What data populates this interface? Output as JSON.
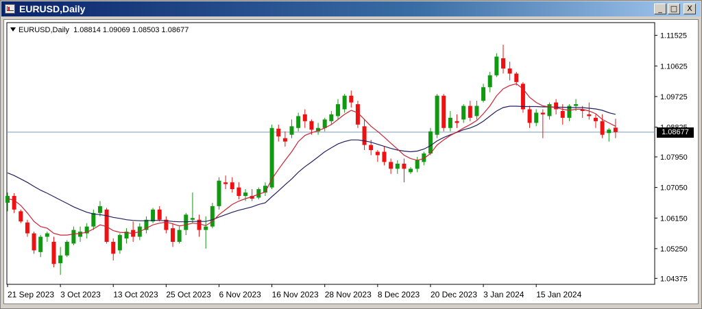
{
  "window": {
    "title": "EURUSD,Daily",
    "minimize_label": "_",
    "maximize_label": "□",
    "close_label": "X"
  },
  "chart_info": {
    "symbol_timeframe": "EURUSD,Daily",
    "ohlc": "1.08814 1.09069 1.08503 1.08677"
  },
  "current_price_label": "1.08677",
  "colors": {
    "bull": "#119911",
    "bear": "#ee1111",
    "ma_fast": "#cc2233",
    "ma_slow": "#202060",
    "price_line": "#7a9ab0"
  },
  "chart_data": {
    "type": "candlestick",
    "ylim": [
      1.042,
      1.119
    ],
    "y_ticks": [
      "1.11525",
      "1.10625",
      "1.09725",
      "1.08825",
      "1.07950",
      "1.07050",
      "1.06150",
      "1.05250",
      "1.04375"
    ],
    "x_ticks": [
      "21 Sep 2023",
      "3 Oct 2023",
      "13 Oct 2023",
      "25 Oct 2023",
      "6 Nov 2023",
      "16 Nov 2023",
      "28 Nov 2023",
      "8 Dec 2023",
      "20 Dec 2023",
      "3 Jan 2024",
      "15 Jan 2024"
    ],
    "x_tick_index": [
      0,
      8,
      16,
      24,
      32,
      40,
      48,
      56,
      64,
      72,
      80
    ],
    "current_price": 1.08677,
    "candles": [
      [
        1.066,
        1.069,
        1.0635,
        1.068
      ],
      [
        1.068,
        1.0688,
        1.063,
        1.064
      ],
      [
        1.0635,
        1.064,
        1.06,
        1.0605
      ],
      [
        1.0602,
        1.061,
        1.056,
        1.057
      ],
      [
        1.057,
        1.0575,
        1.051,
        1.052
      ],
      [
        1.0515,
        1.0565,
        1.05,
        1.056
      ],
      [
        1.056,
        1.0575,
        1.0545,
        1.057
      ],
      [
        1.0545,
        1.056,
        1.047,
        1.048
      ],
      [
        1.0482,
        1.053,
        1.0448,
        1.0505
      ],
      [
        1.0505,
        1.055,
        1.05,
        1.0545
      ],
      [
        1.054,
        1.059,
        1.0535,
        1.058
      ],
      [
        1.056,
        1.059,
        1.0545,
        1.0575
      ],
      [
        1.057,
        1.06,
        1.0555,
        1.059
      ],
      [
        1.059,
        1.064,
        1.058,
        1.063
      ],
      [
        1.063,
        1.0665,
        1.062,
        1.065
      ],
      [
        1.064,
        1.0645,
        1.054,
        1.0545
      ],
      [
        1.0545,
        1.0555,
        1.049,
        1.051
      ],
      [
        1.052,
        1.057,
        1.051,
        1.0565
      ],
      [
        1.0555,
        1.0585,
        1.054,
        1.0575
      ],
      [
        1.058,
        1.0605,
        1.0545,
        1.056
      ],
      [
        1.056,
        1.06,
        1.055,
        1.059
      ],
      [
        1.058,
        1.062,
        1.057,
        1.061
      ],
      [
        1.0605,
        1.0645,
        1.06,
        1.064
      ],
      [
        1.064,
        1.065,
        1.0605,
        1.061
      ],
      [
        1.061,
        1.062,
        1.057,
        1.058
      ],
      [
        1.0585,
        1.06,
        1.053,
        1.0545
      ],
      [
        1.0545,
        1.059,
        1.054,
        1.058
      ],
      [
        1.058,
        1.063,
        1.0565,
        1.0625
      ],
      [
        1.061,
        1.069,
        1.06,
        1.0615
      ],
      [
        1.061,
        1.0625,
        1.056,
        1.058
      ],
      [
        1.058,
        1.062,
        1.0525,
        1.059
      ],
      [
        1.059,
        1.066,
        1.0585,
        1.065
      ],
      [
        1.065,
        1.0735,
        1.064,
        1.0725
      ],
      [
        1.072,
        1.074,
        1.07,
        1.0715
      ],
      [
        1.072,
        1.0735,
        1.069,
        1.07
      ],
      [
        1.0705,
        1.072,
        1.067,
        1.068
      ],
      [
        1.068,
        1.07,
        1.0665,
        1.069
      ],
      [
        1.068,
        1.07,
        1.0665,
        1.0672
      ],
      [
        1.0675,
        1.0705,
        1.067,
        1.07
      ],
      [
        1.069,
        1.072,
        1.068,
        1.071
      ],
      [
        1.0705,
        1.089,
        1.07,
        1.088
      ],
      [
        1.0878,
        1.089,
        1.084,
        1.0855
      ],
      [
        1.085,
        1.087,
        1.0825,
        1.084
      ],
      [
        1.086,
        1.0905,
        1.085,
        1.0885
      ],
      [
        1.088,
        1.0925,
        1.087,
        1.0915
      ],
      [
        1.092,
        1.0935,
        1.088,
        1.09
      ],
      [
        1.09,
        1.0905,
        1.086,
        1.0875
      ],
      [
        1.087,
        1.0895,
        1.086,
        1.088
      ],
      [
        1.088,
        1.091,
        1.087,
        1.0905
      ],
      [
        1.09,
        1.093,
        1.089,
        1.092
      ],
      [
        1.0915,
        1.0965,
        1.0905,
        1.095
      ],
      [
        1.0935,
        1.098,
        1.0925,
        1.0975
      ],
      [
        1.0975,
        1.099,
        1.094,
        1.0955
      ],
      [
        1.095,
        1.096,
        1.088,
        1.089
      ],
      [
        1.0885,
        1.0905,
        1.0815,
        1.083
      ],
      [
        1.083,
        1.0845,
        1.08,
        1.0815
      ],
      [
        1.081,
        1.0815,
        1.078,
        1.08
      ],
      [
        1.081,
        1.0825,
        1.077,
        1.078
      ],
      [
        1.078,
        1.079,
        1.0745,
        1.076
      ],
      [
        1.076,
        1.0785,
        1.0745,
        1.0775
      ],
      [
        1.0775,
        1.079,
        1.072,
        1.076
      ],
      [
        1.075,
        1.0765,
        1.0745,
        1.076
      ],
      [
        1.076,
        1.0795,
        1.075,
        1.0785
      ],
      [
        1.078,
        1.081,
        1.077,
        1.0805
      ],
      [
        1.0805,
        1.088,
        1.08,
        1.087
      ],
      [
        1.086,
        1.098,
        1.085,
        1.0975
      ],
      [
        1.0975,
        1.098,
        1.087,
        1.088
      ],
      [
        1.088,
        1.093,
        1.087,
        1.091
      ],
      [
        1.09,
        1.092,
        1.088,
        1.0895
      ],
      [
        1.0905,
        1.095,
        1.0895,
        1.0945
      ],
      [
        1.0945,
        1.096,
        1.09,
        1.091
      ],
      [
        1.0915,
        1.096,
        1.0905,
        1.0945
      ],
      [
        1.096,
        1.101,
        1.0955,
        1.1
      ],
      [
        1.1,
        1.1045,
        1.0985,
        1.1035
      ],
      [
        1.1035,
        1.11,
        1.103,
        1.109
      ],
      [
        1.1085,
        1.1125,
        1.104,
        1.1055
      ],
      [
        1.1055,
        1.1075,
        1.102,
        1.104
      ],
      [
        1.104,
        1.1045,
        1.1005,
        1.1015
      ],
      [
        1.101,
        1.1015,
        1.0925,
        1.0935
      ],
      [
        1.0935,
        1.0945,
        1.088,
        1.0895
      ],
      [
        1.0895,
        1.0935,
        1.0885,
        1.0925
      ],
      [
        1.0925,
        1.0935,
        1.085,
        1.092
      ],
      [
        1.0915,
        1.0955,
        1.0905,
        1.095
      ],
      [
        1.0955,
        1.0965,
        1.092,
        1.0935
      ],
      [
        1.093,
        1.095,
        1.089,
        1.091
      ],
      [
        1.091,
        1.095,
        1.09,
        1.0945
      ],
      [
        1.0945,
        1.0965,
        1.093,
        1.095
      ],
      [
        1.0935,
        1.0945,
        1.091,
        1.093
      ],
      [
        1.092,
        1.0955,
        1.0905,
        1.0915
      ],
      [
        1.091,
        1.092,
        1.088,
        1.09
      ],
      [
        1.09,
        1.092,
        1.085,
        1.086
      ],
      [
        1.0865,
        1.088,
        1.084,
        1.0875
      ],
      [
        1.0881,
        1.0907,
        1.085,
        1.0868
      ]
    ],
    "ma_fast": [
      1.0672,
      1.0668,
      1.0652,
      1.063,
      1.0605,
      1.059,
      1.0585,
      1.057,
      1.0565,
      1.0565,
      1.0568,
      1.057,
      1.0573,
      1.0583,
      1.0595,
      1.059,
      1.0578,
      1.0573,
      1.0572,
      1.057,
      1.0575,
      1.0585,
      1.0595,
      1.06,
      1.0603,
      1.0598,
      1.0592,
      1.0595,
      1.06,
      1.0598,
      1.0593,
      1.0605,
      1.0625,
      1.064,
      1.0655,
      1.0665,
      1.0672,
      1.0678,
      1.0685,
      1.0692,
      1.073,
      1.0758,
      1.0785,
      1.081,
      1.084,
      1.0858,
      1.0866,
      1.0872,
      1.088,
      1.089,
      1.0905,
      1.092,
      1.0932,
      1.0925,
      1.0905,
      1.0885,
      1.087,
      1.0853,
      1.0835,
      1.0818,
      1.08,
      1.079,
      1.0785,
      1.079,
      1.0805,
      1.083,
      1.0845,
      1.0858,
      1.0868,
      1.088,
      1.089,
      1.0902,
      1.0922,
      1.0945,
      1.0975,
      1.0995,
      1.1005,
      1.101,
      1.0995,
      1.097,
      1.0955,
      1.0945,
      1.0942,
      1.094,
      1.0935,
      1.0932,
      1.0935,
      1.0935,
      1.093,
      1.0922,
      1.0905,
      1.0895,
      1.0885
    ],
    "ma_slow": [
      1.0748,
      1.074,
      1.073,
      1.072,
      1.0708,
      1.0697,
      1.0688,
      1.0678,
      1.0668,
      1.0658,
      1.0648,
      1.064,
      1.0632,
      1.0627,
      1.0625,
      1.0622,
      1.0617,
      1.0614,
      1.061,
      1.0608,
      1.0607,
      1.0607,
      1.0608,
      1.0608,
      1.0607,
      1.0605,
      1.0604,
      1.0604,
      1.0605,
      1.0605,
      1.0605,
      1.061,
      1.0618,
      1.0625,
      1.0632,
      1.0638,
      1.0643,
      1.0648,
      1.0655,
      1.066,
      1.0678,
      1.0695,
      1.0713,
      1.073,
      1.075,
      1.0766,
      1.078,
      1.0795,
      1.081,
      1.0822,
      1.0833,
      1.084,
      1.0845,
      1.0845,
      1.0842,
      1.0838,
      1.0832,
      1.0826,
      1.082,
      1.0815,
      1.0812,
      1.081,
      1.0812,
      1.0818,
      1.0828,
      1.0842,
      1.0852,
      1.086,
      1.0867,
      1.0875,
      1.088,
      1.0888,
      1.09,
      1.0915,
      1.093,
      1.094,
      1.0944,
      1.0944,
      1.0943,
      1.0943,
      1.0943,
      1.0942,
      1.0942,
      1.0941,
      1.0941,
      1.094,
      1.094,
      1.094,
      1.0938,
      1.0936,
      1.0932,
      1.0925,
      1.092
    ]
  }
}
